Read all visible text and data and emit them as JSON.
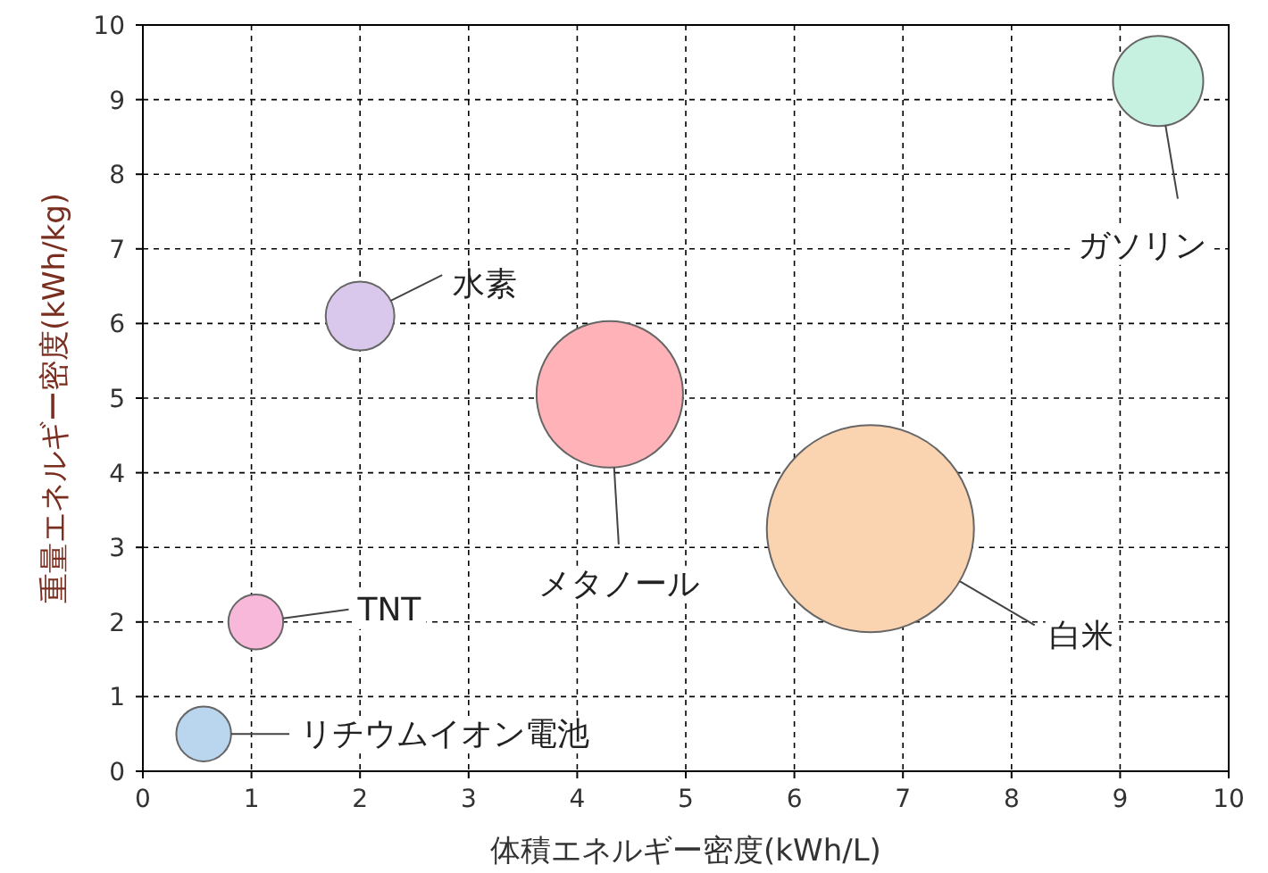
{
  "chart_data": {
    "type": "bubble",
    "xlabel": "体積エネルギー密度(kWh/L)",
    "ylabel": "重量エネルギー密度(kWh/kg)",
    "xlim": [
      0,
      10
    ],
    "ylim": [
      0,
      10
    ],
    "xticks": [
      0,
      1,
      2,
      3,
      4,
      5,
      6,
      7,
      8,
      9,
      10
    ],
    "yticks": [
      0,
      1,
      2,
      3,
      4,
      5,
      6,
      7,
      8,
      9,
      10
    ],
    "grid": true,
    "series": [
      {
        "name": "リチウムイオン電池",
        "color": "#bad6ee",
        "x": [
          0.56
        ],
        "values": [
          0.5
        ],
        "sizes": [
          0.07
        ]
      },
      {
        "name": "TNT",
        "color": "#f8b8da",
        "x": [
          1.04
        ],
        "values": [
          2.0
        ],
        "sizes": [
          0.07
        ]
      },
      {
        "name": "水素",
        "color": "#d9c8ec",
        "x": [
          2.0
        ],
        "values": [
          6.1
        ],
        "sizes": [
          0.11
        ]
      },
      {
        "name": "メタノール",
        "color": "#ffb3b8",
        "x": [
          4.3
        ],
        "values": [
          5.05
        ],
        "sizes": [
          0.5
        ]
      },
      {
        "name": "白米",
        "color": "#fad3b0",
        "x": [
          6.7
        ],
        "values": [
          3.25
        ],
        "sizes": [
          1
        ]
      },
      {
        "name": "ガソリン",
        "color": "#c6f0e0",
        "x": [
          9.35
        ],
        "values": [
          9.25
        ],
        "sizes": [
          0.19
        ]
      }
    ]
  }
}
